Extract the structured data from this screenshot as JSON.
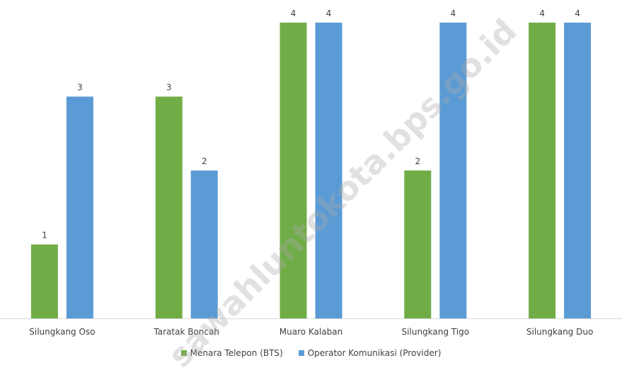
{
  "chart_data": {
    "type": "bar",
    "categories": [
      "Silungkang Oso",
      "Taratak Boncah",
      "Muaro Kalaban",
      "Silungkang Tigo",
      "Silungkang Duo"
    ],
    "series": [
      {
        "name": "Menara Telepon (BTS)",
        "values": [
          1,
          3,
          4,
          2,
          4
        ],
        "color": "#70AD47"
      },
      {
        "name": "Operator Komunikasi (Provider)",
        "values": [
          3,
          2,
          4,
          4,
          4
        ],
        "color": "#5B9BD5"
      }
    ],
    "ylim": [
      0,
      4
    ],
    "grid": false,
    "legend_position": "bottom",
    "axis_color": "#D9D9D9",
    "text_color": "#404040"
  },
  "watermark": "sawahluntokota.bps.go.id"
}
